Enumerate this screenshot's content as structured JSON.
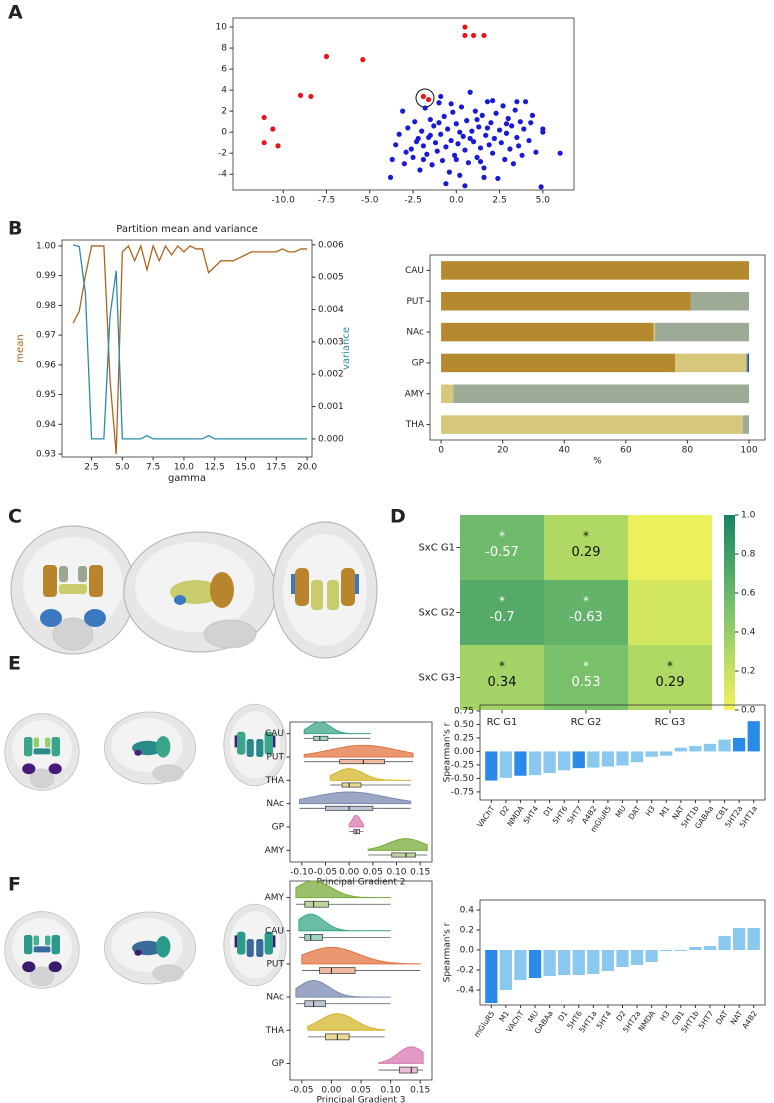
{
  "chart_data": [
    {
      "type": "scatter",
      "panel": "A",
      "xlim": [
        -12.9,
        6.8
      ],
      "ylim": [
        -5.5,
        10.86
      ],
      "xticks": [
        {
          "value": -10,
          "label": "-10.0"
        },
        -7.5,
        {
          "value": -5,
          "label": "-5.0"
        },
        -2.5,
        {
          "value": 0,
          "label": "0.0"
        },
        2.5,
        {
          "value": 5,
          "label": "5.0"
        }
      ],
      "yticks": [
        -4,
        -2,
        0,
        2,
        4,
        6,
        8,
        10
      ],
      "series": [
        {
          "color": "#e8141c",
          "x": [
            -11.1,
            -10.6,
            -11.1,
            -10.3,
            -9.0,
            -8.4,
            -7.5,
            -5.4,
            -1.9,
            -1.6,
            0.5,
            0.5,
            1.0,
            1.6
          ],
          "values": [
            1.4,
            0.3,
            -1.0,
            -1.3,
            3.5,
            3.4,
            7.2,
            6.9,
            3.4,
            3.1,
            10.0,
            9.2,
            9.2,
            9.2
          ]
        },
        {
          "color": "#1a1ad6",
          "x": [
            -3.7,
            -3.8,
            -3.5,
            -3.3,
            -3.1,
            -3.0,
            -2.8,
            -2.6,
            -2.5,
            -2.4,
            -2.2,
            -2.1,
            -2.0,
            -1.9,
            -1.8,
            -1.7,
            -1.6,
            -1.5,
            -1.4,
            -1.3,
            -1.2,
            -1.1,
            -1.0,
            -0.9,
            -0.8,
            -0.7,
            -0.6,
            -0.5,
            -0.4,
            -0.3,
            -0.2,
            -0.1,
            0.0,
            0.1,
            0.2,
            0.3,
            0.4,
            0.5,
            0.6,
            0.7,
            0.8,
            0.9,
            1.0,
            1.1,
            1.2,
            1.3,
            1.4,
            1.5,
            1.6,
            1.7,
            1.8,
            1.9,
            2.0,
            2.1,
            2.2,
            2.3,
            2.4,
            2.5,
            2.6,
            2.7,
            2.8,
            2.9,
            3.0,
            3.1,
            3.2,
            3.3,
            3.4,
            3.5,
            3.6,
            3.7,
            3.8,
            3.9,
            4.0,
            4.2,
            4.4,
            4.6,
            5.0,
            5.0,
            4.9,
            6.0,
            -0.6,
            0.5,
            1.6,
            -2.9,
            -1.0,
            0.2,
            1.2,
            2.1,
            -0.3,
            1.8,
            -1.5,
            0.8,
            2.9,
            -2.3,
            0.0,
            3.5,
            -0.9,
            1.4,
            4.3,
            -1.9
          ],
          "values": [
            -2.6,
            -4.3,
            -1.2,
            -0.2,
            2.0,
            -3.0,
            0.4,
            -1.6,
            -2.4,
            1.0,
            -0.6,
            -3.6,
            0.1,
            -1.3,
            2.3,
            -2.1,
            -0.5,
            1.2,
            -3.1,
            0.6,
            -1.0,
            -1.8,
            2.8,
            -0.2,
            -2.7,
            1.5,
            -1.4,
            0.3,
            -3.8,
            -0.8,
            1.9,
            -2.2,
            0.8,
            -1.1,
            -4.1,
            2.4,
            -0.4,
            -1.7,
            1.1,
            -2.9,
            3.8,
            0.1,
            -0.9,
            2.0,
            -2.4,
            0.5,
            -1.5,
            1.6,
            -3.4,
            -0.3,
            2.9,
            -1.2,
            0.9,
            -2.0,
            -0.6,
            1.8,
            -4.4,
            0.2,
            -1.0,
            2.5,
            -2.6,
            -0.1,
            1.3,
            -1.6,
            0.6,
            -3.0,
            2.1,
            -0.5,
            -1.3,
            1.0,
            -2.2,
            0.3,
            2.9,
            -0.8,
            1.6,
            -1.9,
            0.3,
            0.0,
            -5.2,
            -2.0,
            -4.9,
            -5.1,
            -4.3,
            -1.9,
            0.9,
            0.0,
            1.2,
            3.0,
            2.7,
            0.4,
            -0.3,
            -0.6,
            0.8,
            -0.9,
            -2.6,
            2.9,
            3.4,
            -2.8,
            0.9,
            -2.6
          ]
        }
      ]
    },
    {
      "type": "line",
      "panel": "B",
      "title": "Partition mean and variance",
      "xlabel": "gamma",
      "ylabel": "mean",
      "y2label": "variance",
      "xlim": [
        0.1,
        20.4
      ],
      "ylim": [
        0.929,
        1.002
      ],
      "y2lim": [
        -0.00056,
        0.00615
      ],
      "xticks": [
        2.5,
        {
          "value": 5,
          "label": "5.0"
        },
        7.5,
        {
          "value": 10,
          "label": "10.0"
        },
        12.5,
        {
          "value": 15,
          "label": "15.0"
        },
        17.5,
        {
          "value": 20,
          "label": "20.0"
        }
      ],
      "yticks": [
        0.93,
        0.94,
        0.95,
        0.96,
        0.97,
        0.98,
        0.99,
        {
          "value": 1,
          "label": "1.00"
        }
      ],
      "y2ticks": [
        {
          "value": 0,
          "label": "0.000"
        },
        0.001,
        0.002,
        0.003,
        0.004,
        0.005,
        0.006
      ],
      "x": [
        1,
        1.5,
        2,
        2.5,
        3,
        3.5,
        4,
        4.5,
        5,
        5.5,
        6,
        6.5,
        7,
        7.5,
        8,
        8.5,
        9,
        9.5,
        10,
        10.5,
        11,
        11.5,
        12,
        12.5,
        13,
        13.5,
        14,
        14.5,
        15,
        15.5,
        16,
        16.5,
        17,
        17.5,
        18,
        18.5,
        19,
        19.5,
        20
      ],
      "series": [
        {
          "color": "#b0651e",
          "values": [
            0.974,
            0.978,
            0.99,
            1.0,
            1.0,
            1.0,
            0.955,
            0.93,
            0.998,
            1.0,
            0.995,
            1.0,
            0.992,
            1.0,
            0.995,
            1.0,
            0.997,
            1.0,
            0.998,
            1.0,
            0.999,
            0.999,
            0.991,
            0.993,
            0.995,
            0.995,
            0.995,
            0.996,
            0.997,
            0.998,
            0.998,
            0.998,
            0.998,
            0.998,
            0.999,
            0.998,
            0.998,
            0.999,
            0.999
          ]
        },
        {
          "color": "#2b8ba8",
          "axis": "y2",
          "values": [
            0.006,
            0.00595,
            0.0045,
            0,
            0,
            0,
            0.0038,
            0.0052,
            0,
            0,
            0,
            0,
            0.0001,
            0,
            0,
            0,
            0,
            0,
            0,
            0,
            0,
            0,
            0.0001,
            0,
            0,
            0,
            0,
            0,
            0,
            0,
            0,
            0,
            0,
            0,
            0,
            0,
            0,
            0,
            0
          ]
        }
      ]
    },
    {
      "type": "hbar-stacked",
      "xlabel": "%",
      "categories": [
        "CAU",
        "PUT",
        "NAc",
        "GP",
        "AMY",
        "THA"
      ],
      "xlim": [
        -3.6,
        105.2
      ],
      "xticks": [
        0,
        20,
        40,
        60,
        80,
        100
      ],
      "series": [
        {
          "color": "#b5892e",
          "values": [
            100,
            81,
            69,
            76,
            0,
            0
          ]
        },
        {
          "color": "#d6c77a",
          "values": [
            0,
            0,
            0.5,
            23,
            4,
            98
          ]
        },
        {
          "color": "#9daa96",
          "values": [
            0,
            19,
            30.5,
            0.5,
            96,
            2
          ]
        },
        {
          "color": "#2c4f9c",
          "values": [
            0,
            0,
            0,
            0.5,
            0,
            0
          ]
        }
      ]
    },
    {
      "type": "image",
      "panel": "C"
    },
    {
      "type": "heatmap",
      "panel": "D",
      "rows": [
        "SxC G1",
        "SxC G2",
        "SxC G3"
      ],
      "columns": [
        "RC G1",
        "RC G2",
        "RC G3"
      ],
      "values": [
        [
          -0.57,
          0.29,
          0.03
        ],
        [
          -0.7,
          -0.63,
          0.14
        ],
        [
          0.34,
          0.53,
          0.29
        ]
      ],
      "value_labels": [
        [
          "-0.57",
          "0.29",
          null
        ],
        [
          "-0.7",
          "-0.63",
          null
        ],
        [
          "0.34",
          "0.53",
          "0.29"
        ]
      ],
      "significance": [
        [
          "*",
          "*",
          null
        ],
        [
          "*",
          "*",
          null
        ],
        [
          "*",
          "*",
          "*"
        ]
      ],
      "cmap": [
        "#f4f35c",
        "#7fc46c",
        "#158463"
      ],
      "clim": [
        0,
        1
      ],
      "cticks": [
        {
          "value": 0,
          "label": "0.0"
        },
        0.2,
        0.4,
        0.6,
        0.8,
        {
          "value": 1,
          "label": "1.0"
        }
      ]
    },
    {
      "type": "raincloud",
      "panel": "E",
      "xlabel": "Principal Gradient 2",
      "categories": [
        "CAU",
        "PUT",
        "THA",
        "NAc",
        "GP",
        "AMY"
      ],
      "colors": [
        "#3aa58a",
        "#e07440",
        "#d4b52a",
        "#7a8ab0",
        "#d878b0",
        "#7aab3a"
      ],
      "xlim": [
        -0.125,
        0.175
      ],
      "xticks": [
        {
          "value": -0.1,
          "label": "-0.10"
        },
        -0.05,
        {
          "value": 0,
          "label": "0.00"
        },
        0.05,
        {
          "value": 0.1,
          "label": "0.10"
        },
        0.15
      ],
      "min": [
        -0.095,
        -0.095,
        -0.04,
        -0.105,
        0.0,
        0.04
      ],
      "q1": [
        -0.075,
        -0.02,
        -0.015,
        -0.05,
        0.01,
        0.09
      ],
      "median": [
        -0.062,
        0.03,
        0.0,
        0.0,
        0.015,
        0.12
      ],
      "q3": [
        -0.045,
        0.075,
        0.025,
        0.05,
        0.022,
        0.14
      ],
      "max": [
        0.045,
        0.135,
        0.13,
        0.13,
        0.03,
        0.165
      ]
    },
    {
      "type": "bar",
      "ylabel": "Spearman's r",
      "categories": [
        "VAChT",
        "D2",
        "NMDA",
        "5HT4",
        "D1",
        "5HT6",
        "5HT7",
        "A4B2",
        "mGluR5",
        "MU",
        "DAT",
        "H3",
        "M1",
        "NAT",
        "5HT1b",
        "GABAa",
        "CB1",
        "5HT2a",
        "5HT1a"
      ],
      "values": [
        -0.54,
        -0.49,
        -0.45,
        -0.44,
        -0.4,
        -0.35,
        -0.31,
        -0.3,
        -0.28,
        -0.26,
        -0.2,
        -0.1,
        -0.08,
        0.07,
        0.1,
        0.14,
        0.22,
        0.25,
        0.56
      ],
      "colors": [
        "#2a8ae8",
        "#8ac8f0",
        "#2a8ae8",
        "#8ac8f0",
        "#8ac8f0",
        "#8ac8f0",
        "#2a8ae8",
        "#8ac8f0",
        "#8ac8f0",
        "#8ac8f0",
        "#8ac8f0",
        "#8ac8f0",
        "#8ac8f0",
        "#8ac8f0",
        "#8ac8f0",
        "#8ac8f0",
        "#8ac8f0",
        "#2a8ae8",
        "#2a8ae8"
      ],
      "ylim": [
        -0.9,
        0.86
      ],
      "yticks": [
        -0.75,
        {
          "value": -0.5,
          "label": "-0.50"
        },
        -0.25,
        {
          "value": 0,
          "label": "0.00"
        },
        0.25,
        {
          "value": 0.5,
          "label": "0.50"
        },
        0.75
      ]
    },
    {
      "type": "raincloud",
      "panel": "F",
      "xlabel": "Principal Gradient 3",
      "categories": [
        "AMY",
        "CAU",
        "PUT",
        "NAc",
        "THA",
        "GP"
      ],
      "colors": [
        "#7aab3a",
        "#3aa58a",
        "#e07440",
        "#7a8ab0",
        "#d4b52a",
        "#d878b0"
      ],
      "xlim": [
        -0.07,
        0.17
      ],
      "xticks": [
        -0.05,
        {
          "value": 0,
          "label": "0.00"
        },
        0.05,
        {
          "value": 0.1,
          "label": "0.10"
        },
        0.15
      ],
      "min": [
        -0.06,
        -0.055,
        -0.05,
        -0.06,
        -0.04,
        0.08
      ],
      "q1": [
        -0.045,
        -0.045,
        -0.02,
        -0.045,
        -0.01,
        0.115
      ],
      "median": [
        -0.03,
        -0.035,
        0.0,
        -0.03,
        0.01,
        0.135
      ],
      "q3": [
        -0.005,
        -0.015,
        0.04,
        -0.01,
        0.03,
        0.145
      ],
      "max": [
        0.1,
        0.1,
        0.15,
        0.1,
        0.09,
        0.155
      ]
    },
    {
      "type": "bar",
      "ylabel": "Spearman's r",
      "categories": [
        "mGluR5",
        "M1",
        "VAChT",
        "MU",
        "GABAa",
        "D1",
        "5HT6",
        "5HT1a",
        "5HT4",
        "D2",
        "5HT2a",
        "NMDA",
        "H3",
        "CB1",
        "5HT1b",
        "5HT7",
        "DAT",
        "NAT",
        "A4B2"
      ],
      "values": [
        -0.53,
        -0.4,
        -0.3,
        -0.28,
        -0.26,
        -0.25,
        -0.25,
        -0.24,
        -0.21,
        -0.17,
        -0.15,
        -0.12,
        -0.01,
        -0.01,
        0.03,
        0.04,
        0.14,
        0.22,
        0.22
      ],
      "colors": [
        "#2a8ae8",
        "#8ac8f0",
        "#8ac8f0",
        "#2a8ae8",
        "#8ac8f0",
        "#8ac8f0",
        "#8ac8f0",
        "#8ac8f0",
        "#8ac8f0",
        "#8ac8f0",
        "#8ac8f0",
        "#8ac8f0",
        "#8ac8f0",
        "#8ac8f0",
        "#8ac8f0",
        "#8ac8f0",
        "#8ac8f0",
        "#8ac8f0",
        "#8ac8f0"
      ],
      "ylim": [
        -0.55,
        0.5
      ],
      "yticks": [
        -0.4,
        -0.2,
        {
          "value": 0,
          "label": "0.0"
        },
        0.2,
        0.4
      ]
    }
  ]
}
